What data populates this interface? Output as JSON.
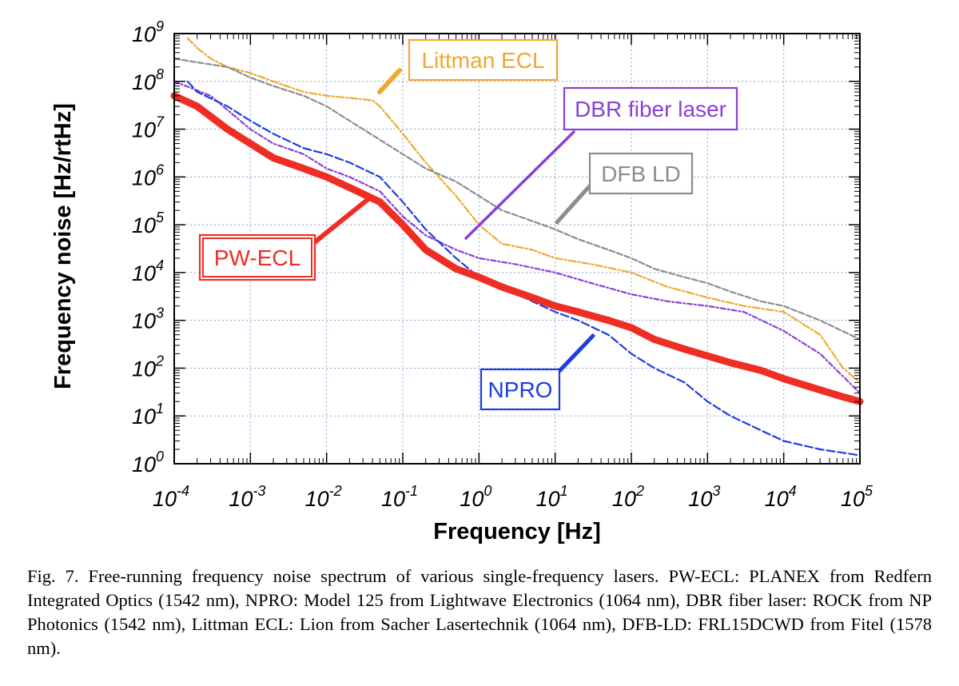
{
  "chart_data": {
    "type": "line",
    "xlabel": "Frequency [Hz]",
    "ylabel": "Frequency noise [Hz/rtHz]",
    "xscale": "log",
    "yscale": "log",
    "xlim": [
      0.0001,
      100000
    ],
    "ylim": [
      1,
      1000000000
    ],
    "grid": true,
    "x_ticks": [
      {
        "base": "10",
        "exp": "-4"
      },
      {
        "base": "10",
        "exp": "-3"
      },
      {
        "base": "10",
        "exp": "-2"
      },
      {
        "base": "10",
        "exp": "-1"
      },
      {
        "base": "10",
        "exp": "0"
      },
      {
        "base": "10",
        "exp": "1"
      },
      {
        "base": "10",
        "exp": "2"
      },
      {
        "base": "10",
        "exp": "3"
      },
      {
        "base": "10",
        "exp": "4"
      },
      {
        "base": "10",
        "exp": "5"
      }
    ],
    "y_ticks": [
      {
        "base": "10",
        "exp": "0"
      },
      {
        "base": "10",
        "exp": "1"
      },
      {
        "base": "10",
        "exp": "2"
      },
      {
        "base": "10",
        "exp": "3"
      },
      {
        "base": "10",
        "exp": "4"
      },
      {
        "base": "10",
        "exp": "5"
      },
      {
        "base": "10",
        "exp": "6"
      },
      {
        "base": "10",
        "exp": "7"
      },
      {
        "base": "10",
        "exp": "8"
      },
      {
        "base": "10",
        "exp": "9"
      }
    ],
    "series": [
      {
        "name": "Littman ECL",
        "color": "#f0a830",
        "x": [
          0.00015,
          0.0002,
          0.0003,
          0.0005,
          0.001,
          0.002,
          0.005,
          0.01,
          0.02,
          0.04,
          0.05,
          0.1,
          0.2,
          0.5,
          1,
          2,
          5,
          10,
          30,
          100,
          300,
          1000,
          3000,
          10000,
          30000,
          60000,
          100000
        ],
        "y": [
          800000000,
          500000000,
          300000000,
          200000000,
          150000000,
          100000000,
          60000000,
          50000000,
          45000000,
          40000000,
          30000000,
          8000000,
          2000000,
          400000,
          100000,
          40000,
          30000,
          20000,
          15000,
          10000,
          5000,
          3000,
          2000,
          1500,
          500,
          100,
          50
        ]
      },
      {
        "name": "DFB LD",
        "color": "#8c8c8c",
        "x": [
          0.0001,
          0.0002,
          0.0005,
          0.001,
          0.002,
          0.005,
          0.01,
          0.02,
          0.05,
          0.1,
          0.2,
          0.5,
          1,
          2,
          5,
          10,
          20,
          50,
          100,
          200,
          500,
          1000,
          2000,
          5000,
          10000,
          30000,
          100000
        ],
        "y": [
          300000000,
          250000000,
          200000000,
          120000000,
          80000000,
          50000000,
          30000000,
          15000000,
          6000000,
          3000000,
          1500000,
          800000,
          400000,
          200000,
          120000,
          80000,
          50000,
          30000,
          20000,
          12000,
          8000,
          6000,
          4000,
          2500,
          2000,
          1000,
          400
        ]
      },
      {
        "name": "DBR fiber laser",
        "color": "#8a3fd8",
        "x": [
          0.0001,
          0.0003,
          0.001,
          0.002,
          0.005,
          0.01,
          0.02,
          0.05,
          0.1,
          0.2,
          0.5,
          1,
          3,
          10,
          30,
          100,
          300,
          1000,
          3000,
          10000,
          30000,
          100000
        ],
        "y": [
          100000000,
          50000000,
          10000000,
          5000000,
          3000000,
          1500000,
          1000000,
          500000,
          150000,
          60000,
          30000,
          20000,
          15000,
          10000,
          6000,
          3500,
          2500,
          2000,
          1500,
          600,
          200,
          30
        ]
      },
      {
        "name": "NPRO",
        "color": "#1e3ee0",
        "x": [
          0.00015,
          0.0002,
          0.0005,
          0.001,
          0.002,
          0.005,
          0.01,
          0.02,
          0.05,
          0.1,
          0.2,
          0.5,
          1,
          2,
          5,
          10,
          20,
          50,
          100,
          200,
          500,
          1000,
          2000,
          5000,
          10000,
          30000,
          100000
        ],
        "y": [
          100000000,
          60000000,
          30000000,
          15000000,
          8000000,
          4000000,
          3000000,
          2000000,
          1000000,
          300000,
          80000,
          20000,
          8000,
          5000,
          2500,
          1500,
          1000,
          500,
          200,
          100,
          50,
          20,
          10,
          5,
          3,
          2,
          1.5
        ]
      },
      {
        "name": "PW-ECL",
        "color": "#ee2e24",
        "x": [
          0.0001,
          0.0002,
          0.0005,
          0.001,
          0.002,
          0.005,
          0.01,
          0.02,
          0.05,
          0.1,
          0.2,
          0.5,
          1,
          2,
          5,
          10,
          20,
          50,
          100,
          200,
          500,
          1000,
          2000,
          5000,
          10000,
          30000,
          60000,
          100000
        ],
        "y": [
          50000000,
          30000000,
          10000000,
          5000000,
          2500000,
          1500000,
          1000000,
          600000,
          300000,
          100000,
          30000,
          12000,
          8000,
          5000,
          3000,
          2000,
          1500,
          1000,
          700,
          400,
          250,
          180,
          130,
          90,
          60,
          35,
          25,
          20
        ]
      }
    ],
    "annotations": [
      {
        "text": "Littman ECL",
        "color": "#f0a830",
        "style": "box"
      },
      {
        "text": "DBR fiber laser",
        "color": "#8a3fd8",
        "style": "box"
      },
      {
        "text": "DFB LD",
        "color": "#8c8c8c",
        "style": "box"
      },
      {
        "text": "PW-ECL",
        "color": "#ee2e24",
        "style": "double-box"
      },
      {
        "text": "NPRO",
        "color": "#1e3ee0",
        "style": "box"
      }
    ]
  },
  "caption": "Fig. 7. Free-running frequency noise spectrum of various single-frequency lasers. PW-ECL: PLANEX from Redfern Integrated Optics (1542 nm), NPRO: Model 125 from Lightwave Electronics (1064 nm), DBR fiber laser: ROCK from NP Photonics (1542 nm), Littman ECL: Lion from Sacher Lasertechnik (1064 nm), DFB-LD: FRL15DCWD from Fitel (1578 nm)."
}
